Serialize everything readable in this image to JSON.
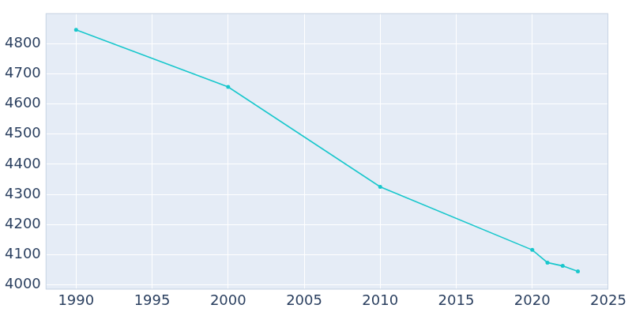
{
  "chart_data": {
    "type": "line",
    "x": [
      1990,
      2000,
      2010,
      2020,
      2021,
      2022,
      2023
    ],
    "values": [
      4845,
      4656,
      4325,
      4116,
      4074,
      4063,
      4045
    ],
    "color": "#19c7cc",
    "marker": "circle",
    "xlim": [
      1988,
      2025
    ],
    "xticks": [
      1990,
      1995,
      2000,
      2005,
      2010,
      2015,
      2020,
      2025
    ],
    "ylim": [
      3985,
      4900
    ],
    "yticks": [
      4000,
      4100,
      4200,
      4300,
      4400,
      4500,
      4600,
      4700,
      4800
    ],
    "grid": true
  }
}
